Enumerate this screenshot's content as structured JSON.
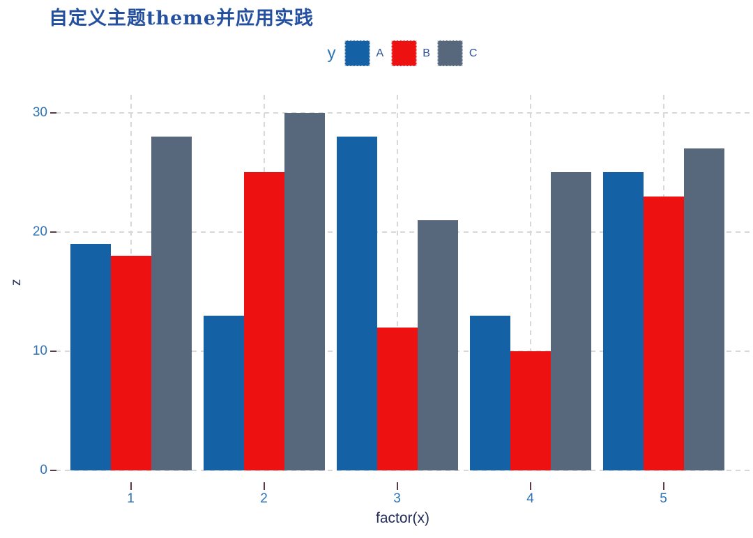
{
  "chart_data": {
    "type": "bar",
    "title": "自定义主题theme并应用实践",
    "legend_title": "y",
    "legend_position": "top-center",
    "categories": [
      "1",
      "2",
      "3",
      "4",
      "5"
    ],
    "series": [
      {
        "name": "A",
        "color": "#1561A6",
        "values": [
          19,
          13,
          28,
          13,
          25
        ]
      },
      {
        "name": "B",
        "color": "#EE1111",
        "values": [
          18,
          25,
          12,
          10,
          23
        ]
      },
      {
        "name": "C",
        "color": "#57687C",
        "values": [
          28,
          30,
          21,
          25,
          27
        ]
      }
    ],
    "xlabel": "factor(x)",
    "ylabel": "z",
    "ylim": [
      0,
      31.5
    ],
    "yticks": [
      0,
      10,
      20,
      30
    ],
    "grid": "dashed-major-x-and-y",
    "style": {
      "title_color": "#24509F",
      "tick_label_color": "#2E74B5",
      "x_title_color": "#232C56",
      "y_title_color": "#232C56",
      "legend_label_color": "#2E5396",
      "legend_title_color": "#2E74B5",
      "grid_color": "#D8D8D8",
      "tick_mark_color": "#5E3A48",
      "legend_key_border": "#C6D0DA",
      "background": "#FFFFFF"
    }
  }
}
